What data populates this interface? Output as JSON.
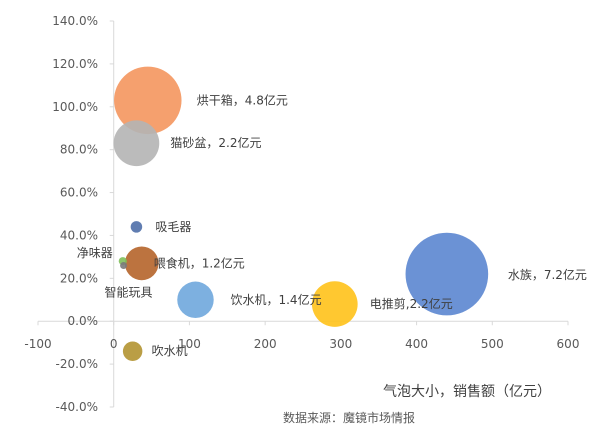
{
  "chart_data": {
    "type": "bubble",
    "x_axis": {
      "range": [
        -100,
        600
      ],
      "step": 100,
      "tick_labels": [
        "-100",
        "0",
        "100",
        "200",
        "300",
        "400",
        "500",
        "600"
      ]
    },
    "y_axis": {
      "range": [
        -40,
        140
      ],
      "step": 20,
      "tick_labels": [
        "-40.0%",
        "-20.0%",
        "0.0%",
        "20.0%",
        "40.0%",
        "60.0%",
        "80.0%",
        "100.0%",
        "120.0%",
        "140.0%"
      ]
    },
    "grid": false,
    "size_note": "气泡大小，销售额（亿元）",
    "source": "数据来源：魔镜市场情报",
    "points": [
      {
        "label": "烘干箱，4.8亿元",
        "x": 45,
        "y": 103,
        "size": 4.8,
        "color": "#F4965E"
      },
      {
        "label": "猫砂盆，2.2亿元",
        "x": 30,
        "y": 83,
        "size": 2.2,
        "color": "#B4B4B4"
      },
      {
        "label": "吸毛器",
        "x": 30,
        "y": 44,
        "size": 0.14,
        "color": "#4F6FA8"
      },
      {
        "label": "净味器",
        "x": 12,
        "y": 28,
        "size": 0.07,
        "color": "#7FBF5A"
      },
      {
        "label": "智能玩具",
        "x": 13,
        "y": 26,
        "size": 0.05,
        "color": "#7A7A7A"
      },
      {
        "label": "喂食机，1.2亿元",
        "x": 37,
        "y": 27,
        "size": 1.2,
        "color": "#B5642A"
      },
      {
        "label": "水族，7.2亿元",
        "x": 440,
        "y": 22,
        "size": 7.2,
        "color": "#5B86D0"
      },
      {
        "label": "饮水机，1.4亿元",
        "x": 108,
        "y": 10,
        "size": 1.4,
        "color": "#6FA7DD"
      },
      {
        "label": "电推剪,2.2亿元",
        "x": 292,
        "y": 8,
        "size": 2.2,
        "color": "#FFC21A"
      },
      {
        "label": "吹水机",
        "x": 25,
        "y": -14,
        "size": 0.4,
        "color": "#B39331"
      }
    ]
  }
}
